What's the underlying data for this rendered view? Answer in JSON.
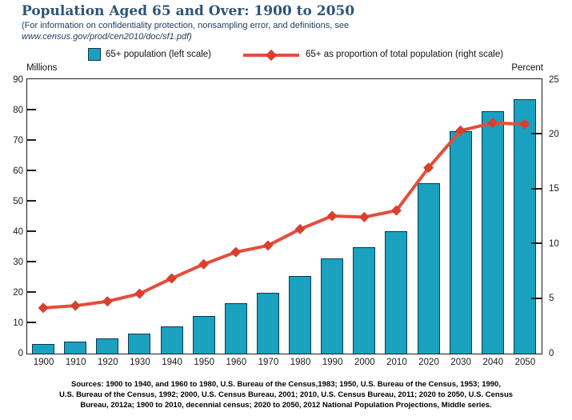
{
  "header": {
    "title": "Population Aged 65 and Over: 1900 to 2050",
    "subtitle_line1": "(For information on confidentiality protection, nonsampling error, and definitions, see",
    "subtitle_line2": "www.census.gov/prod/cen2010/doc/sf1.pdf)"
  },
  "legend": {
    "bars_label": "65+ population (left scale)",
    "line_label": "65+ as proportion of total population (right scale)"
  },
  "axes": {
    "left_caption": "Millions",
    "right_caption": "Percent"
  },
  "colors": {
    "bar_fill": "#1aa1bf",
    "bar_border": "#10384e",
    "line": "#e74c3b",
    "marker": "#d93f2e",
    "title_text": "#2d5477",
    "subtitle_text": "#1c3c5e",
    "axis": "#1b1b1b"
  },
  "chart_data": {
    "type": "bar+line",
    "categories": [
      "1900",
      "1910",
      "1920",
      "1930",
      "1940",
      "1950",
      "1960",
      "1970",
      "1980",
      "1990",
      "2000",
      "2010",
      "2020",
      "2030",
      "2040",
      "2050"
    ],
    "series": [
      {
        "name": "65+ population (left scale)",
        "axis": "left",
        "unit": "millions",
        "type": "bar",
        "values": [
          3.1,
          3.9,
          4.9,
          6.6,
          9.0,
          12.3,
          16.6,
          20.1,
          25.5,
          31.2,
          35.0,
          40.3,
          56.0,
          73.1,
          79.7,
          83.7
        ]
      },
      {
        "name": "65+ as proportion of total population (right scale)",
        "axis": "right",
        "unit": "percent",
        "type": "line-diamond",
        "values": [
          4.1,
          4.3,
          4.7,
          5.4,
          6.8,
          8.1,
          9.2,
          9.8,
          11.3,
          12.5,
          12.4,
          13.0,
          16.9,
          20.3,
          21.0,
          20.9
        ]
      }
    ],
    "left_axis": {
      "label": "Millions",
      "min": 0,
      "max": 90,
      "ticks": [
        0,
        10,
        20,
        30,
        40,
        50,
        60,
        70,
        80,
        90
      ]
    },
    "right_axis": {
      "label": "Percent",
      "min": 0,
      "max": 25,
      "ticks": [
        0,
        5,
        10,
        15,
        20,
        25
      ]
    },
    "grid": false,
    "legend_position": "top"
  },
  "sources": {
    "lines": [
      "Sources: 1900 to 1940, and 1960 to 1980, U.S. Bureau of the Census,1983; 1950, U.S. Bureau of the Census, 1953; 1990,",
      "U.S. Bureau of the Census, 1992; 2000, U.S. Census Bureau, 2001; 2010, U.S. Census Bureau, 2011; 2020 to 2050, U.S. Census",
      "Bureau, 2012a; 1900 to 2010, decennial census; 2020 to 2050, 2012 National Population Projections, Middle series."
    ]
  }
}
